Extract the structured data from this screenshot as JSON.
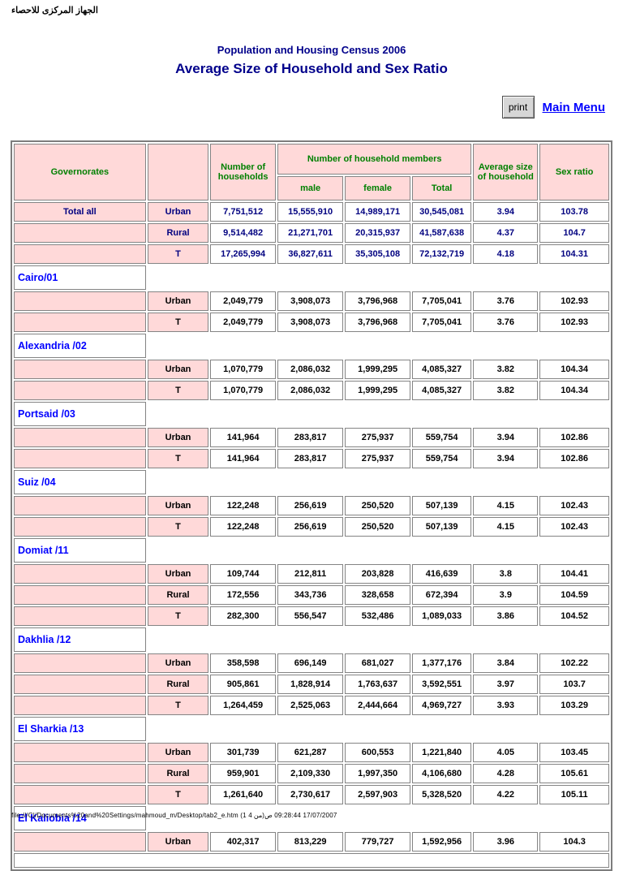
{
  "page": {
    "agency_arabic": "الجهاز المركزى للاحصاء",
    "subtitle": "Population and Housing Census 2006",
    "title": "Average Size of Household and Sex Ratio",
    "print_button": "print",
    "main_menu": "Main Menu",
    "footer": "file:///C|/Documents%20and%20Settings/mahmoud_m/Desktop/tab2_e.htm (1 من 4)17/07/2007 09:28:44 ص"
  },
  "colors": {
    "cell_pink": "#FFD9D9",
    "header_green": "#008000",
    "total_navy": "#000080",
    "governorate_blue": "#0000FF",
    "title_navy": "#00008B",
    "border_gray": "#848484"
  },
  "table": {
    "headers": {
      "governorates": "Governorates",
      "area_type": "",
      "number_of_households": "Number of households",
      "members_group": "Number of household members",
      "male": "male",
      "female": "female",
      "total": "Total",
      "avg_size": "Average size of household",
      "sex_ratio": "Sex ratio"
    },
    "value_columns": [
      "households",
      "male",
      "female",
      "total",
      "avg-size",
      "sex-ratio"
    ],
    "sections": [
      {
        "name": "Total all",
        "variant": "total",
        "rows": [
          {
            "area": "Urban",
            "values": [
              "7,751,512",
              "15,555,910",
              "14,989,171",
              "30,545,081",
              "3.94",
              "103.78"
            ]
          },
          {
            "area": "Rural",
            "values": [
              "9,514,482",
              "21,271,701",
              "20,315,937",
              "41,587,638",
              "4.37",
              "104.7"
            ]
          },
          {
            "area": "T",
            "values": [
              "17,265,994",
              "36,827,611",
              "35,305,108",
              "72,132,719",
              "4.18",
              "104.31"
            ]
          }
        ]
      },
      {
        "name": "Cairo/01",
        "variant": "governorate",
        "rows": [
          {
            "area": "Urban",
            "values": [
              "2,049,779",
              "3,908,073",
              "3,796,968",
              "7,705,041",
              "3.76",
              "102.93"
            ]
          },
          {
            "area": "T",
            "values": [
              "2,049,779",
              "3,908,073",
              "3,796,968",
              "7,705,041",
              "3.76",
              "102.93"
            ]
          }
        ]
      },
      {
        "name": "Alexandria /02",
        "variant": "governorate",
        "rows": [
          {
            "area": "Urban",
            "values": [
              "1,070,779",
              "2,086,032",
              "1,999,295",
              "4,085,327",
              "3.82",
              "104.34"
            ]
          },
          {
            "area": "T",
            "values": [
              "1,070,779",
              "2,086,032",
              "1,999,295",
              "4,085,327",
              "3.82",
              "104.34"
            ]
          }
        ]
      },
      {
        "name": "Portsaid /03",
        "variant": "governorate",
        "rows": [
          {
            "area": "Urban",
            "values": [
              "141,964",
              "283,817",
              "275,937",
              "559,754",
              "3.94",
              "102.86"
            ]
          },
          {
            "area": "T",
            "values": [
              "141,964",
              "283,817",
              "275,937",
              "559,754",
              "3.94",
              "102.86"
            ]
          }
        ]
      },
      {
        "name": "Suiz /04",
        "variant": "governorate",
        "rows": [
          {
            "area": "Urban",
            "values": [
              "122,248",
              "256,619",
              "250,520",
              "507,139",
              "4.15",
              "102.43"
            ]
          },
          {
            "area": "T",
            "values": [
              "122,248",
              "256,619",
              "250,520",
              "507,139",
              "4.15",
              "102.43"
            ]
          }
        ]
      },
      {
        "name": "Domiat /11",
        "variant": "governorate",
        "rows": [
          {
            "area": "Urban",
            "values": [
              "109,744",
              "212,811",
              "203,828",
              "416,639",
              "3.8",
              "104.41"
            ]
          },
          {
            "area": "Rural",
            "values": [
              "172,556",
              "343,736",
              "328,658",
              "672,394",
              "3.9",
              "104.59"
            ]
          },
          {
            "area": "T",
            "values": [
              "282,300",
              "556,547",
              "532,486",
              "1,089,033",
              "3.86",
              "104.52"
            ]
          }
        ]
      },
      {
        "name": "Dakhlia /12",
        "variant": "governorate",
        "rows": [
          {
            "area": "Urban",
            "values": [
              "358,598",
              "696,149",
              "681,027",
              "1,377,176",
              "3.84",
              "102.22"
            ]
          },
          {
            "area": "Rural",
            "values": [
              "905,861",
              "1,828,914",
              "1,763,637",
              "3,592,551",
              "3.97",
              "103.7"
            ]
          },
          {
            "area": "T",
            "values": [
              "1,264,459",
              "2,525,063",
              "2,444,664",
              "4,969,727",
              "3.93",
              "103.29"
            ]
          }
        ]
      },
      {
        "name": "El Sharkia /13",
        "variant": "governorate",
        "rows": [
          {
            "area": "Urban",
            "values": [
              "301,739",
              "621,287",
              "600,553",
              "1,221,840",
              "4.05",
              "103.45"
            ]
          },
          {
            "area": "Rural",
            "values": [
              "959,901",
              "2,109,330",
              "1,997,350",
              "4,106,680",
              "4.28",
              "105.61"
            ]
          },
          {
            "area": "T",
            "values": [
              "1,261,640",
              "2,730,617",
              "2,597,903",
              "5,328,520",
              "4.22",
              "105.11"
            ]
          }
        ]
      },
      {
        "name": "El Kaliobia /14",
        "variant": "governorate",
        "rows": [
          {
            "area": "Urban",
            "values": [
              "402,317",
              "813,229",
              "779,727",
              "1,592,956",
              "3.96",
              "104.3"
            ]
          }
        ]
      }
    ]
  }
}
